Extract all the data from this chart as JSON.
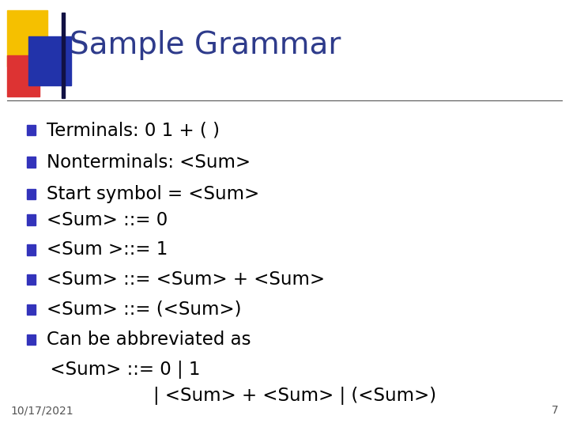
{
  "title": "Sample Grammar",
  "title_color": "#2E3B8B",
  "background_color": "#FFFFFF",
  "bullet_color": "#000000",
  "bullet_square_color": "#3333BB",
  "date_text": "10/17/2021",
  "page_num": "7",
  "bullet_items_top": [
    "Terminals: 0 1 + ( )",
    "Nonterminals: <Sum>",
    "Start symbol = <Sum>"
  ],
  "bullet_items_bottom": [
    "<Sum> ::= 0",
    "<Sum >::= 1",
    "<Sum> ::= <Sum> + <Sum>",
    "<Sum> ::= (<Sum>)",
    "Can be abbreviated as"
  ],
  "continuation_line1": "  <Sum> ::= 0 | 1",
  "continuation_line2": "                    | <Sum> + <Sum> | (<Sum>)",
  "header_line_color": "#555555",
  "accent_yellow": "#F5C000",
  "accent_red": "#DD3333",
  "accent_blue": "#2233AA",
  "figwidth": 7.2,
  "figheight": 5.4,
  "dpi": 100
}
